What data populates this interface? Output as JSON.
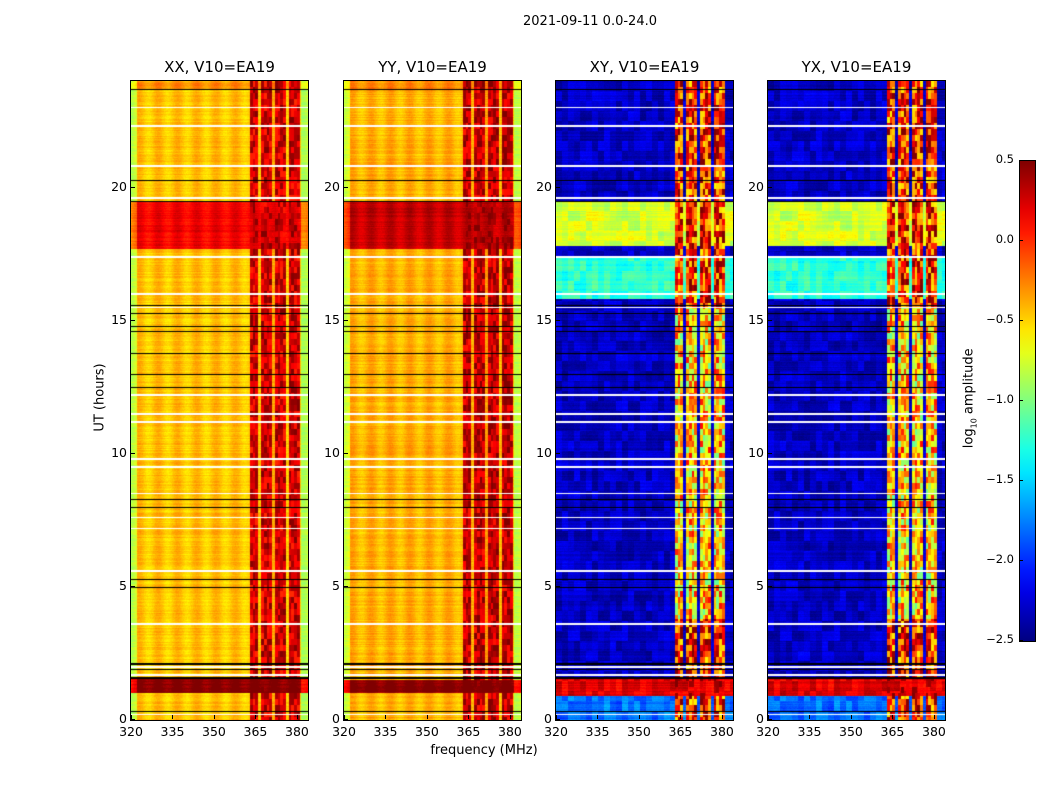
{
  "suptitle": "2021-09-11 0.0-24.0",
  "ylabel": "UT (hours)",
  "xlabel": "frequency (MHz)",
  "colorbar": {
    "label_main": "log",
    "label_sub": "10",
    "label_rest": " amplitude",
    "range": [
      -2.5,
      0.5
    ],
    "ticks": [
      "0.5",
      "0.0",
      "−0.5",
      "−1.0",
      "−1.5",
      "−2.0",
      "−2.5"
    ],
    "tick_values": [
      0.5,
      0.0,
      -0.5,
      -1.0,
      -1.5,
      -2.0,
      -2.5
    ],
    "colormap": "jet"
  },
  "chart_data": {
    "type": "heatmap",
    "title": "2021-09-11 0.0-24.0",
    "xlabel": "frequency (MHz)",
    "ylabel": "UT (hours)",
    "xlim": [
      320,
      384
    ],
    "ylim": [
      0,
      24
    ],
    "xticks": [
      320,
      335,
      350,
      365,
      380
    ],
    "yticks": [
      0,
      5,
      10,
      15,
      20
    ],
    "rfi_channels_mhz": [
      [
        363,
        366
      ],
      [
        367,
        371
      ],
      [
        372,
        376
      ],
      [
        377,
        381
      ]
    ],
    "flagged_white_hours": [
      23.0,
      22.3,
      20.8,
      19.6,
      17.4,
      16.0,
      15.5,
      12.2,
      11.5,
      11.2,
      9.8,
      9.5,
      8.5,
      7.6,
      7.2,
      5.6,
      3.6,
      2.0,
      1.7,
      0.2
    ],
    "flagged_black_hours": [
      23.7,
      20.3,
      19.5,
      15.6,
      15.3,
      14.8,
      14.6,
      13.8,
      13.0,
      12.5,
      8.3,
      8.0,
      5.3,
      5.0,
      2.15,
      1.9,
      1.6,
      0.35
    ],
    "panels": [
      {
        "title": "XX, V10=EA19",
        "kind": "auto",
        "base": -0.45,
        "rfi_level": 0.25,
        "bands": [
          {
            "t": [
              23.7,
              24.0
            ],
            "level": -0.3
          },
          {
            "t": [
              17.7,
              19.5
            ],
            "level": 0.15
          },
          {
            "t": [
              1.0,
              1.6
            ],
            "level": 0.5
          }
        ]
      },
      {
        "title": "YY, V10=EA19",
        "kind": "auto",
        "base": -0.4,
        "rfi_level": 0.3,
        "bands": [
          {
            "t": [
              23.7,
              24.0
            ],
            "level": -0.3
          },
          {
            "t": [
              17.7,
              19.5
            ],
            "level": 0.3
          },
          {
            "t": [
              1.0,
              1.5
            ],
            "level": 0.5
          }
        ]
      },
      {
        "title": "XY, V10=EA19",
        "kind": "cross",
        "base": -2.3,
        "rfi_level": 0.0,
        "bands": [
          {
            "t": [
              17.8,
              19.5
            ],
            "level": -0.75
          },
          {
            "t": [
              15.8,
              17.4
            ],
            "level": -1.25
          },
          {
            "t": [
              0.9,
              1.6
            ],
            "level": 0.2
          },
          {
            "t": [
              0.0,
              0.9
            ],
            "level": -1.8
          }
        ]
      },
      {
        "title": "YX, V10=EA19",
        "kind": "cross",
        "base": -2.3,
        "rfi_level": 0.0,
        "bands": [
          {
            "t": [
              17.8,
              19.5
            ],
            "level": -0.75
          },
          {
            "t": [
              15.8,
              17.4
            ],
            "level": -1.25
          },
          {
            "t": [
              0.9,
              1.6
            ],
            "level": 0.2
          },
          {
            "t": [
              0.0,
              0.9
            ],
            "level": -1.8
          }
        ]
      }
    ]
  }
}
